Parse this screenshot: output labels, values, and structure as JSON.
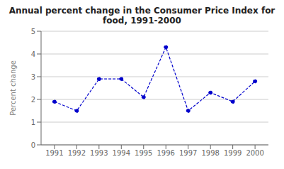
{
  "chart_data": {
    "type": "line",
    "title": "Annual percent change in the Consumer Price Index for\nfood, 1991-2000",
    "ylabel": "Percent change",
    "x": [
      1991,
      1992,
      1993,
      1994,
      1995,
      1996,
      1997,
      1998,
      1999,
      2000
    ],
    "values": [
      1.9,
      1.5,
      2.9,
      2.9,
      2.1,
      4.3,
      1.5,
      2.3,
      1.9,
      2.8
    ],
    "xlim": [
      1990.4,
      2000.6
    ],
    "xticks": [
      1991,
      1992,
      1993,
      1994,
      1995,
      1996,
      1997,
      1998,
      1999,
      2000
    ],
    "ylim": [
      0,
      5
    ],
    "yticks": [
      0,
      1,
      2,
      3,
      4,
      5
    ],
    "color": "#0000CC",
    "marker": "circle",
    "line_style": "dashed",
    "grid": true
  }
}
